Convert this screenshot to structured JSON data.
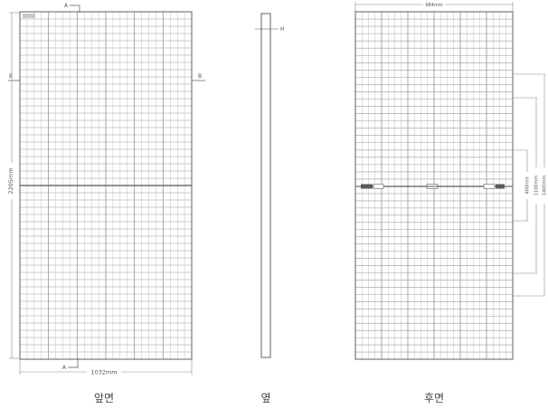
{
  "dimensions": {
    "front_width": "1032mm",
    "front_height": "2205mm",
    "back_width": "984mm",
    "back_400": "400mm",
    "back_1100": "1100mm",
    "back_1400": "1400mm"
  },
  "markers": {
    "section_a": "A",
    "section_b": "B",
    "thickness": "H"
  },
  "captions": {
    "front": "앞면",
    "side": "옆",
    "back": "후면"
  },
  "colors": {
    "frame": "#7a7a7a",
    "cell_line": "#9c9c9c",
    "dimension_line": "#8a8a8a",
    "text": "#555555"
  }
}
